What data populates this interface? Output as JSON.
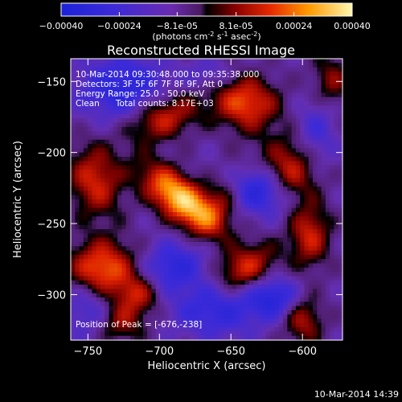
{
  "chart_data": {
    "type": "heatmap",
    "title": "Reconstructed RHESSI Image",
    "xlabel": "Heliocentric X (arcsec)",
    "ylabel": "Heliocentric Y (arcsec)",
    "xlim": [
      -762,
      -572
    ],
    "ylim": [
      -332,
      -134
    ],
    "xticks": [
      -750,
      -700,
      -650,
      -600
    ],
    "yticks": [
      -150,
      -200,
      -250,
      -300
    ],
    "colorbar": {
      "ticks": [
        "-0.00040",
        "-0.00024",
        "-8.1e-05",
        "8.1e-05",
        "0.00024",
        "0.00040"
      ],
      "tick_values": [
        -0.0004,
        -0.00024,
        -8.1e-05,
        8.1e-05,
        0.00024,
        0.0004
      ],
      "range": [
        -0.0004,
        0.0004
      ],
      "units_prefix": "(photons cm",
      "units_exp1": "-2",
      "units_mid": " s",
      "units_exp2": "-1",
      "units_mid2": " asec",
      "units_exp3": "-2",
      "units_suffix": ")"
    },
    "annotations": [
      "10-Mar-2014 09:30:48.000 to 09:35:38.000",
      "Detectors: 3F 5F 6F 7F 8F 9F, Att 0",
      "Energy Range: 25.0 - 50.0 keV",
      "Clean      Total counts: 8.17E+03"
    ],
    "peak_label": "Position of Peak = [-676,-238]",
    "peak": [
      -676,
      -238
    ],
    "hotspots": [
      {
        "x": -685,
        "y": -233,
        "sx": 22,
        "sy": 10,
        "rot": -40,
        "amp": 0.00044
      },
      {
        "x": -740,
        "y": -282,
        "sx": 16,
        "sy": 14,
        "rot": 0,
        "amp": 0.00032
      },
      {
        "x": -745,
        "y": -220,
        "sx": 13,
        "sy": 18,
        "rot": 10,
        "amp": 0.00024
      },
      {
        "x": -698,
        "y": -175,
        "sx": 18,
        "sy": 11,
        "rot": 20,
        "amp": 0.00026
      },
      {
        "x": -640,
        "y": -165,
        "sx": 16,
        "sy": 13,
        "rot": -10,
        "amp": 0.00029
      },
      {
        "x": -610,
        "y": -215,
        "sx": 14,
        "sy": 17,
        "rot": 0,
        "amp": 0.00026
      },
      {
        "x": -595,
        "y": -258,
        "sx": 10,
        "sy": 16,
        "rot": 0,
        "amp": 0.00023
      },
      {
        "x": -640,
        "y": -282,
        "sx": 16,
        "sy": 11,
        "rot": 30,
        "amp": 0.00025
      },
      {
        "x": -715,
        "y": -300,
        "sx": 12,
        "sy": 10,
        "rot": 0,
        "amp": 0.00021
      },
      {
        "x": -728,
        "y": -320,
        "sx": 12,
        "sy": 10,
        "rot": 0,
        "amp": 0.00019
      },
      {
        "x": -600,
        "y": -318,
        "sx": 10,
        "sy": 12,
        "rot": 0,
        "amp": 0.0002
      },
      {
        "x": -655,
        "y": -230,
        "sx": 10,
        "sy": 22,
        "rot": -30,
        "amp": 0.00016
      },
      {
        "x": -580,
        "y": -150,
        "sx": 10,
        "sy": 14,
        "rot": 0,
        "amp": 0.00016
      }
    ],
    "coldspots": [
      {
        "x": -630,
        "y": -226,
        "sx": 18,
        "sy": 12,
        "rot": -20,
        "amp": -0.0003
      },
      {
        "x": -725,
        "y": -155,
        "sx": 22,
        "sy": 16,
        "rot": 0,
        "amp": -0.00024
      },
      {
        "x": -690,
        "y": -280,
        "sx": 16,
        "sy": 12,
        "rot": 20,
        "amp": -0.00022
      },
      {
        "x": -660,
        "y": -310,
        "sx": 22,
        "sy": 14,
        "rot": 0,
        "amp": -0.00021
      },
      {
        "x": -748,
        "y": -310,
        "sx": 14,
        "sy": 14,
        "rot": 0,
        "amp": -0.00016
      },
      {
        "x": -620,
        "y": -302,
        "sx": 12,
        "sy": 10,
        "rot": 0,
        "amp": -0.00024
      },
      {
        "x": -590,
        "y": -185,
        "sx": 10,
        "sy": 18,
        "rot": 0,
        "amp": -0.00014
      },
      {
        "x": -665,
        "y": -145,
        "sx": 12,
        "sy": 8,
        "rot": 0,
        "amp": -0.0001
      }
    ],
    "background": -9e-05
  },
  "footer": {
    "timestamp": "10-Mar-2014 14:39"
  }
}
